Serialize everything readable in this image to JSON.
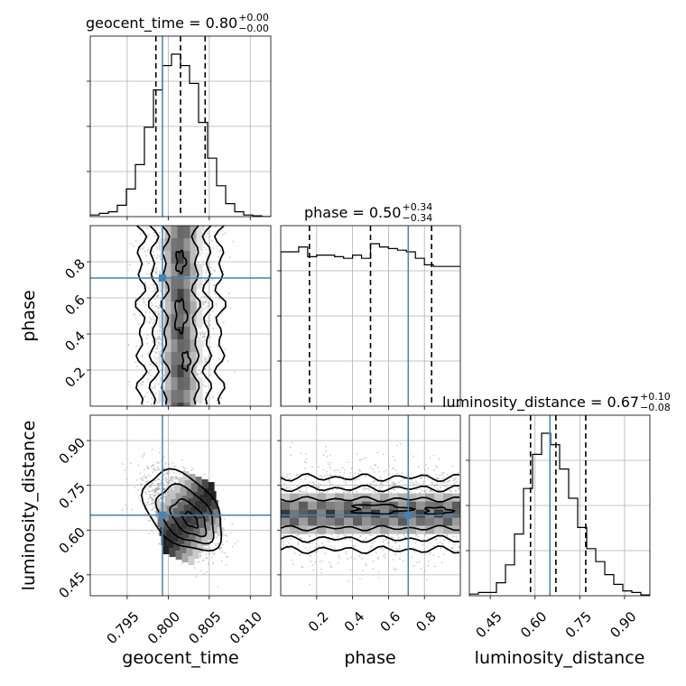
{
  "chart_data": {
    "type": "corner",
    "parameters": [
      "geocent_time",
      "phase",
      "luminosity_distance"
    ],
    "truths": {
      "geocent_time": 0.7993,
      "phase": 0.71,
      "luminosity_distance": 0.65
    },
    "truth_color": "#4682b4",
    "ranges": {
      "geocent_time": [
        0.7905,
        0.8125
      ],
      "phase": [
        0.0,
        1.0
      ],
      "luminosity_distance": [
        0.38,
        0.985
      ]
    },
    "titles": [
      {
        "param": "geocent_time",
        "label": "geocent_time",
        "median": "0.80",
        "plus": "+0.00",
        "minus": "−0.00"
      },
      {
        "param": "phase",
        "label": "phase",
        "median": "0.50",
        "plus": "+0.34",
        "minus": "−0.34"
      },
      {
        "param": "luminosity_distance",
        "label": "luminosity_distance",
        "median": "0.67",
        "plus": "+0.10",
        "minus": "−0.08"
      }
    ],
    "quantiles": {
      "geocent_time": [
        0.7985,
        0.8015,
        0.8045
      ],
      "phase": [
        0.16,
        0.5,
        0.84
      ],
      "luminosity_distance": [
        0.585,
        0.67,
        0.77
      ]
    },
    "ticks": {
      "geocent_time": [
        0.795,
        0.8,
        0.805,
        0.81
      ],
      "phase": [
        0.2,
        0.4,
        0.6,
        0.8
      ],
      "luminosity_distance": [
        0.45,
        0.6,
        0.75,
        0.9
      ]
    },
    "tick_labels": {
      "geocent_time": [
        "0.795",
        "0.800",
        "0.805",
        "0.810"
      ],
      "phase": [
        "0.2",
        "0.4",
        "0.6",
        "0.8"
      ],
      "luminosity_distance": [
        "0.45",
        "0.60",
        "0.75",
        "0.90"
      ]
    },
    "histograms": {
      "geocent_time": {
        "edges_start": 0.7905,
        "bin_width": 0.0011,
        "counts": [
          0.01,
          0.02,
          0.03,
          0.07,
          0.17,
          0.32,
          0.55,
          0.78,
          0.93,
          1.0,
          0.93,
          0.82,
          0.58,
          0.36,
          0.19,
          0.08,
          0.03,
          0.01,
          0.005,
          0.0
        ]
      },
      "phase": {
        "edges_start": 0.0,
        "bin_width": 0.05,
        "counts": [
          0.95,
          0.95,
          0.98,
          0.92,
          0.93,
          0.93,
          0.92,
          0.91,
          0.93,
          0.91,
          1.0,
          0.98,
          0.97,
          0.96,
          0.95,
          0.91,
          0.87,
          0.86,
          0.86,
          0.86
        ]
      },
      "luminosity_distance": {
        "edges_start": 0.38,
        "bin_width": 0.03025,
        "counts": [
          0.01,
          0.02,
          0.02,
          0.08,
          0.19,
          0.38,
          0.66,
          0.87,
          1.0,
          0.93,
          0.78,
          0.6,
          0.42,
          0.29,
          0.21,
          0.13,
          0.07,
          0.03,
          0.02,
          0.005
        ]
      }
    },
    "grid": true
  }
}
